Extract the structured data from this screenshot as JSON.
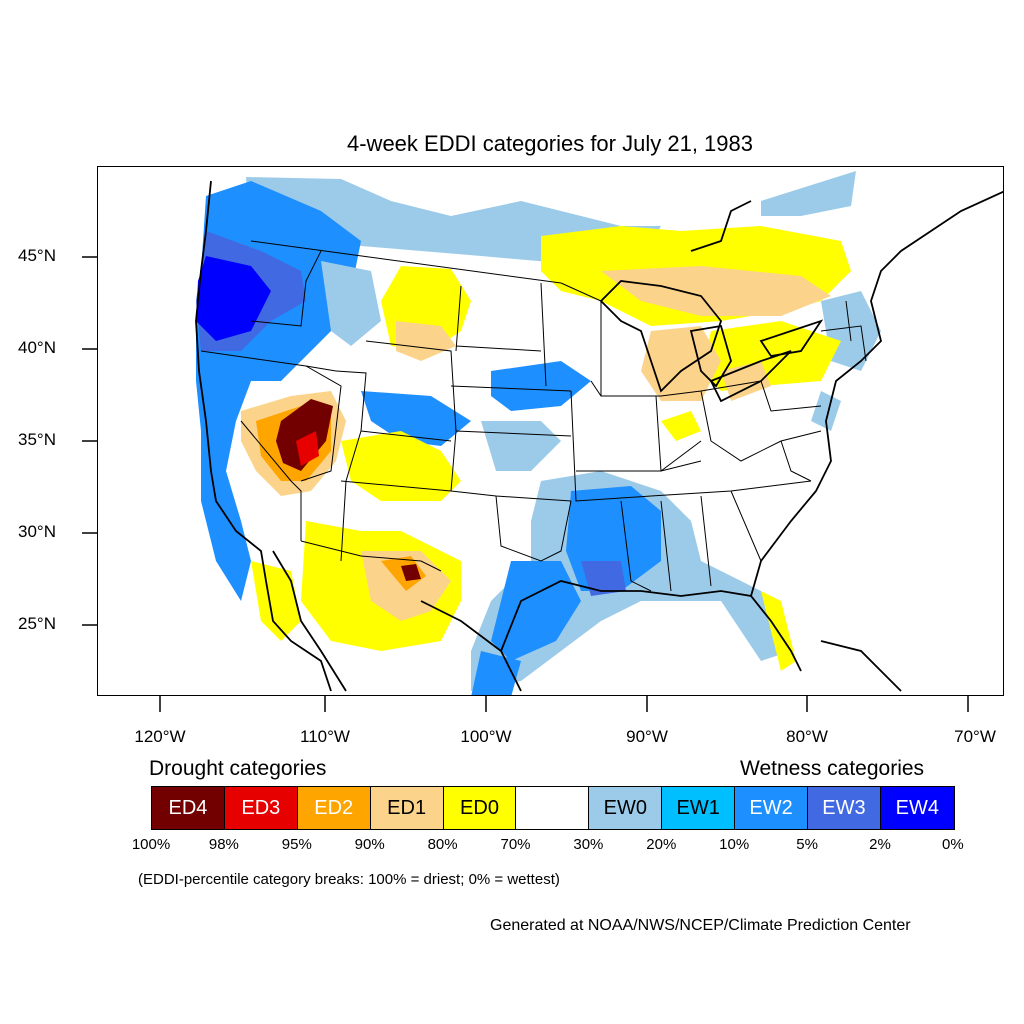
{
  "title": "4-week EDDI categories for July 21, 1983",
  "lat_labels": [
    "45°N",
    "40°N",
    "35°N",
    "30°N",
    "25°N"
  ],
  "lon_labels": [
    "120°W",
    "110°W",
    "100°W",
    "90°W",
    "80°W",
    "70°W"
  ],
  "legend": {
    "drought_heading": "Drought categories",
    "wetness_heading": "Wetness categories",
    "categories": [
      {
        "label": "ED4",
        "color": "#730000",
        "text_color": "#ffffff"
      },
      {
        "label": "ED3",
        "color": "#e60000",
        "text_color": "#ffffff"
      },
      {
        "label": "ED2",
        "color": "#ffa500",
        "text_color": "#ffffff"
      },
      {
        "label": "ED1",
        "color": "#fcd38a",
        "text_color": "#000000"
      },
      {
        "label": "ED0",
        "color": "#ffff00",
        "text_color": "#000000"
      },
      {
        "label": "",
        "color": "#ffffff",
        "text_color": "#000000"
      },
      {
        "label": "EW0",
        "color": "#9ccbea",
        "text_color": "#000000"
      },
      {
        "label": "EW1",
        "color": "#00bfff",
        "text_color": "#000000"
      },
      {
        "label": "EW2",
        "color": "#1e8fff",
        "text_color": "#ffffff"
      },
      {
        "label": "EW3",
        "color": "#4169e1",
        "text_color": "#ffffff"
      },
      {
        "label": "EW4",
        "color": "#0000ff",
        "text_color": "#ffffff"
      }
    ],
    "breaks": [
      "100%",
      "98%",
      "95%",
      "90%",
      "80%",
      "70%",
      "30%",
      "20%",
      "10%",
      "5%",
      "2%",
      "0%"
    ]
  },
  "note": "(EDDI-percentile category breaks: 100% = driest; 0% = wettest)",
  "credit": "Generated at NOAA/NWS/NCEP/Climate Prediction Center"
}
